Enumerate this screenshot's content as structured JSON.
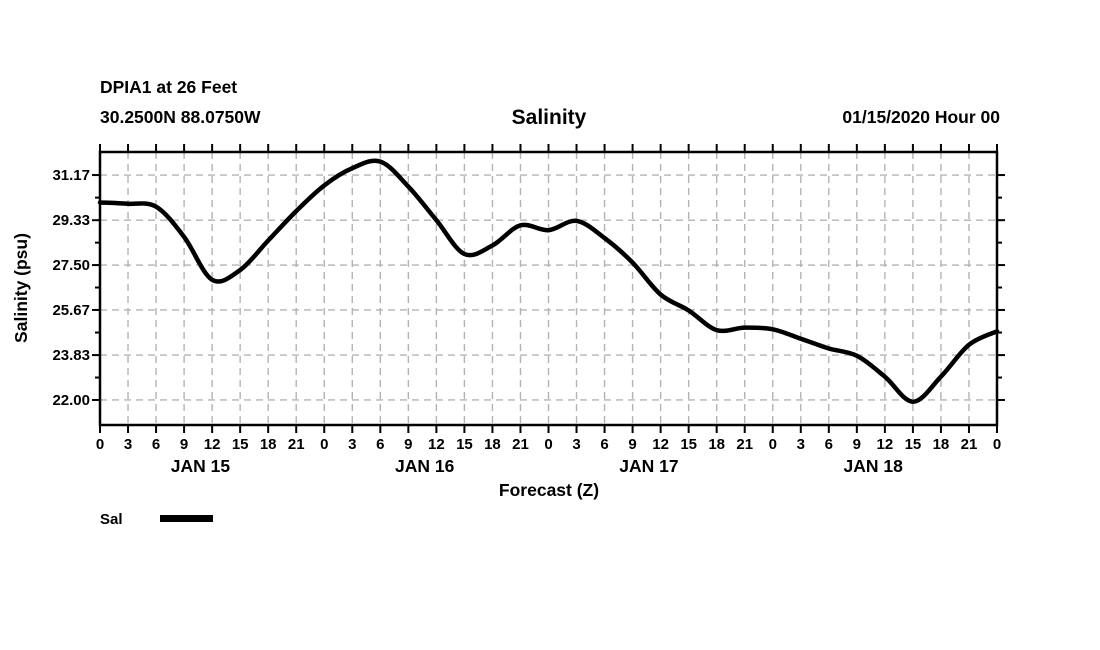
{
  "header": {
    "station_name": "DPIA1 at 26 Feet",
    "station_coords": "30.2500N 88.0750W",
    "title": "Salinity",
    "run_datetime": "01/15/2020 Hour 00"
  },
  "chart_data": {
    "type": "line",
    "title": "Salinity",
    "xlabel": "Forecast (Z)",
    "ylabel": "Salinity (psu)",
    "x_hours": [
      0,
      3,
      6,
      9,
      12,
      15,
      18,
      21,
      24,
      27,
      30,
      33,
      36,
      39,
      42,
      45,
      48,
      51,
      54,
      57,
      60,
      63,
      66,
      69,
      72,
      75,
      78,
      81,
      84,
      87,
      90,
      93,
      96
    ],
    "series": [
      {
        "name": "Sal",
        "values": [
          30.05,
          30.0,
          29.88,
          28.65,
          26.9,
          27.3,
          28.5,
          29.7,
          30.75,
          31.45,
          31.72,
          30.7,
          29.33,
          27.95,
          28.3,
          29.12,
          28.92,
          29.3,
          28.6,
          27.6,
          26.3,
          25.65,
          24.85,
          24.95,
          24.88,
          24.5,
          24.1,
          23.8,
          22.95,
          21.93,
          22.95,
          24.25,
          24.8
        ]
      }
    ],
    "ylim": [
      20.98,
      32.11
    ],
    "xlim_hours": [
      0,
      96
    ],
    "yticks": [
      22.0,
      23.83,
      25.67,
      27.5,
      29.33,
      31.17
    ],
    "ytick_labels": [
      "22.00",
      "23.83",
      "25.67",
      "27.50",
      "29.33",
      "31.17"
    ],
    "xtick_step_hours": 3,
    "hour_tick_labels": [
      "0",
      "3",
      "6",
      "9",
      "12",
      "15",
      "18",
      "21",
      "0",
      "3",
      "6",
      "9",
      "12",
      "15",
      "18",
      "21",
      "0",
      "3",
      "6",
      "9",
      "12",
      "15",
      "18",
      "21",
      "0",
      "3",
      "6",
      "9",
      "12",
      "15",
      "18",
      "21",
      "0"
    ],
    "day_labels": [
      "JAN 15",
      "JAN 16",
      "JAN 17",
      "JAN 18"
    ],
    "grid": "dashed",
    "grid_color": "#b3b3b3",
    "line_color": "#000000",
    "axis_color": "#000000",
    "legend": {
      "label": "Sal",
      "position": "bottom-left"
    }
  }
}
